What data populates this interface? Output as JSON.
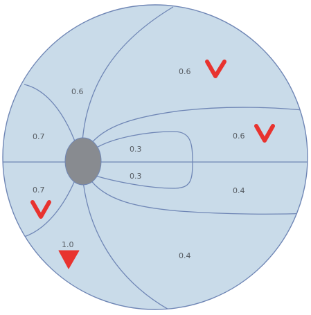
{
  "colors": {
    "fundus_fill": "#c9dbe9",
    "boundary_line": "#6f86b5",
    "disc_fill": "#888b90",
    "marker_red": "#e8332f",
    "label_text": "#555a60"
  },
  "regions": [
    {
      "id": "upper-left-peripheral",
      "value": "0.6"
    },
    {
      "id": "upper-right",
      "value": "0.6",
      "marker": "v-mark"
    },
    {
      "id": "left-upper",
      "value": "0.7"
    },
    {
      "id": "right-middle",
      "value": "0.6",
      "marker": "v-mark"
    },
    {
      "id": "papillomacular-upper",
      "value": "0.3"
    },
    {
      "id": "papillomacular-lower",
      "value": "0.3"
    },
    {
      "id": "left-lower",
      "value": "0.7",
      "marker": "v-mark"
    },
    {
      "id": "right-lower-band",
      "value": "0.4"
    },
    {
      "id": "lower-left",
      "value": "1.0",
      "marker": "filled-triangle"
    },
    {
      "id": "lower-right",
      "value": "0.4"
    }
  ]
}
